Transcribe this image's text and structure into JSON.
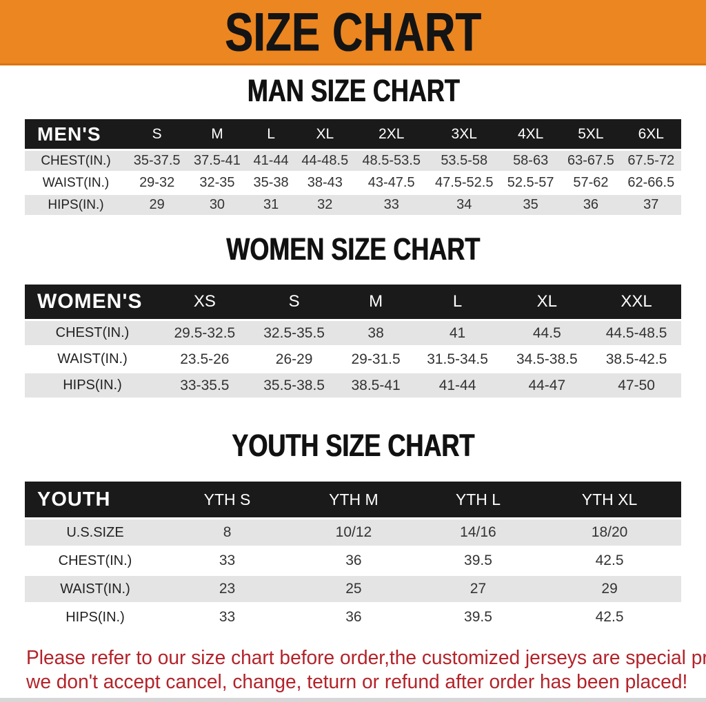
{
  "banner": {
    "title": "SIZE CHART",
    "bg_color": "#ec8620",
    "text_color": "#141414"
  },
  "sections": [
    {
      "id": "men",
      "heading": "MAN SIZE CHART",
      "table": {
        "corner_label": "MEN'S",
        "columns": [
          "S",
          "M",
          "L",
          "XL",
          "2XL",
          "3XL",
          "4XL",
          "5XL",
          "6XL"
        ],
        "rows": [
          {
            "label": "CHEST(IN.)",
            "values": [
              "35-37.5",
              "37.5-41",
              "41-44",
              "44-48.5",
              "48.5-53.5",
              "53.5-58",
              "58-63",
              "63-67.5",
              "67.5-72"
            ]
          },
          {
            "label": "WAIST(IN.)",
            "values": [
              "29-32",
              "32-35",
              "35-38",
              "38-43",
              "43-47.5",
              "47.5-52.5",
              "52.5-57",
              "57-62",
              "62-66.5"
            ]
          },
          {
            "label": "HIPS(IN.)",
            "values": [
              "29",
              "30",
              "31",
              "32",
              "33",
              "34",
              "35",
              "36",
              "37"
            ]
          }
        ]
      }
    },
    {
      "id": "women",
      "heading": "WOMEN SIZE CHART",
      "table": {
        "corner_label": "WOMEN'S",
        "columns": [
          "XS",
          "S",
          "M",
          "L",
          "XL",
          "XXL"
        ],
        "rows": [
          {
            "label": "CHEST(IN.)",
            "values": [
              "29.5-32.5",
              "32.5-35.5",
              "38",
              "41",
              "44.5",
              "44.5-48.5"
            ]
          },
          {
            "label": "WAIST(IN.)",
            "values": [
              "23.5-26",
              "26-29",
              "29-31.5",
              "31.5-34.5",
              "34.5-38.5",
              "38.5-42.5"
            ]
          },
          {
            "label": "HIPS(IN.)",
            "values": [
              "33-35.5",
              "35.5-38.5",
              "38.5-41",
              "41-44",
              "44-47",
              "47-50"
            ]
          }
        ]
      }
    },
    {
      "id": "youth",
      "heading": "YOUTH SIZE CHART",
      "table": {
        "corner_label": "YOUTH",
        "columns": [
          "YTH S",
          "YTH M",
          "YTH L",
          "YTH XL"
        ],
        "rows": [
          {
            "label": "U.S.SIZE",
            "values": [
              "8",
              "10/12",
              "14/16",
              "18/20"
            ]
          },
          {
            "label": "CHEST(IN.)",
            "values": [
              "33",
              "36",
              "39.5",
              "42.5"
            ]
          },
          {
            "label": "WAIST(IN.)",
            "values": [
              "23",
              "25",
              "27",
              "29"
            ]
          },
          {
            "label": "HIPS(IN.)",
            "values": [
              "33",
              "36",
              "39.5",
              "42.5"
            ]
          }
        ]
      }
    }
  ],
  "footer": {
    "line1": "Please refer to our size chart before order,the customized jerseys are special products,",
    "line2": "we don't accept cancel, change, teturn or refund after order has been placed!",
    "color": "#b3232a"
  }
}
